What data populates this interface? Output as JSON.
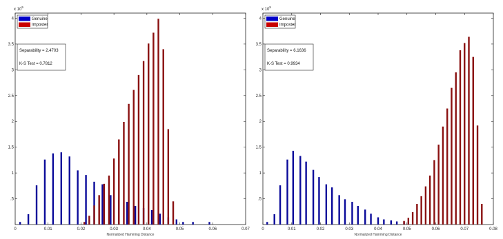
{
  "chart_data": [
    {
      "type": "bar",
      "xlim": [
        0,
        0.07
      ],
      "ylim": [
        0,
        4.1
      ],
      "x_ticks": [
        "0",
        "0.01",
        "0.02",
        "0.03",
        "0.04",
        "0.05",
        "0.06",
        "0.07"
      ],
      "y_ticks": [
        ".5",
        "1",
        "1.5",
        "2",
        "2.5",
        "3",
        "3.5",
        "4"
      ],
      "y_multiplier": {
        "base": "x 10",
        "exp": "5"
      },
      "legend": {
        "placement": "top-left",
        "entries": [
          {
            "label": "Genuine",
            "color": "#0000c8"
          },
          {
            "label": "Imposter",
            "color": "#c80000"
          }
        ]
      },
      "annotations": [
        "Separability = 2.4703",
        "K-S Test = 0.7812"
      ],
      "xlabel": "Normalized Hamming Distance",
      "series": [
        {
          "name": "Genuine",
          "color": "#0a0a9a",
          "x": [
            0.0015,
            0.004,
            0.0065,
            0.009,
            0.0115,
            0.014,
            0.0165,
            0.019,
            0.0215,
            0.024,
            0.0265,
            0.029,
            0.0315,
            0.034,
            0.0365,
            0.039,
            0.0415,
            0.044,
            0.0465,
            0.049,
            0.051,
            0.054,
            0.059
          ],
          "values": [
            0.05,
            0.2,
            0.76,
            1.26,
            1.38,
            1.4,
            1.32,
            1.05,
            0.96,
            0.83,
            0.78,
            0.57,
            0.48,
            0.44,
            0.36,
            0.32,
            0.28,
            0.21,
            0.14,
            0.1,
            0.05,
            0.05,
            0.05
          ]
        },
        {
          "name": "Imposter",
          "color": "#8a1010",
          "x": [
            0.021,
            0.0225,
            0.024,
            0.0255,
            0.027,
            0.0285,
            0.03,
            0.0315,
            0.033,
            0.0345,
            0.036,
            0.0375,
            0.039,
            0.0405,
            0.042,
            0.0435,
            0.045,
            0.0465,
            0.048
          ],
          "values": [
            0.05,
            0.17,
            0.37,
            0.57,
            0.79,
            0.95,
            1.28,
            1.65,
            1.99,
            2.34,
            2.61,
            2.9,
            3.17,
            3.51,
            3.72,
            3.99,
            3.4,
            1.85,
            0.45
          ]
        }
      ]
    },
    {
      "type": "bar",
      "xlim": [
        0,
        0.08
      ],
      "ylim": [
        0,
        4.1
      ],
      "x_ticks": [
        "0",
        "0.01",
        "0.02",
        "0.03",
        "0.04",
        "0.05",
        "0.06",
        "0.07",
        "0.08"
      ],
      "y_ticks": [
        ".5",
        "1",
        "1.5",
        "2",
        "2.5",
        "3",
        "3.5",
        "4"
      ],
      "y_multiplier": {
        "base": "x 10",
        "exp": "5"
      },
      "legend": {
        "placement": "top-left",
        "entries": [
          {
            "label": "Genuine",
            "color": "#0000c8"
          },
          {
            "label": "Imposter",
            "color": "#c80000"
          }
        ]
      },
      "annotations": [
        "Separability = 6.1636",
        "K-S Test = 0.9934"
      ],
      "xlabel": "Normalized Hamming Distance",
      "series": [
        {
          "name": "Genuine",
          "color": "#0a0a9a",
          "x": [
            0.0015,
            0.004,
            0.006,
            0.0085,
            0.0105,
            0.013,
            0.015,
            0.0175,
            0.0195,
            0.022,
            0.024,
            0.0265,
            0.0285,
            0.031,
            0.033,
            0.0355,
            0.0375,
            0.04,
            0.042,
            0.0445,
            0.0465,
            0.049
          ],
          "values": [
            0.05,
            0.2,
            0.76,
            1.26,
            1.43,
            1.33,
            1.22,
            1.06,
            0.92,
            0.78,
            0.72,
            0.57,
            0.49,
            0.44,
            0.36,
            0.29,
            0.21,
            0.14,
            0.1,
            0.08,
            0.06,
            0.05
          ]
        },
        {
          "name": "Imposter",
          "color": "#8a1010",
          "x": [
            0.049,
            0.0505,
            0.052,
            0.0535,
            0.055,
            0.0565,
            0.058,
            0.0595,
            0.061,
            0.0625,
            0.064,
            0.0655,
            0.067,
            0.0685,
            0.07,
            0.0715,
            0.073,
            0.0745,
            0.076
          ],
          "values": [
            0.07,
            0.13,
            0.24,
            0.4,
            0.55,
            0.74,
            0.95,
            1.25,
            1.55,
            1.9,
            2.25,
            2.65,
            2.95,
            3.38,
            3.52,
            3.64,
            3.25,
            1.92,
            0.4
          ]
        }
      ]
    }
  ]
}
